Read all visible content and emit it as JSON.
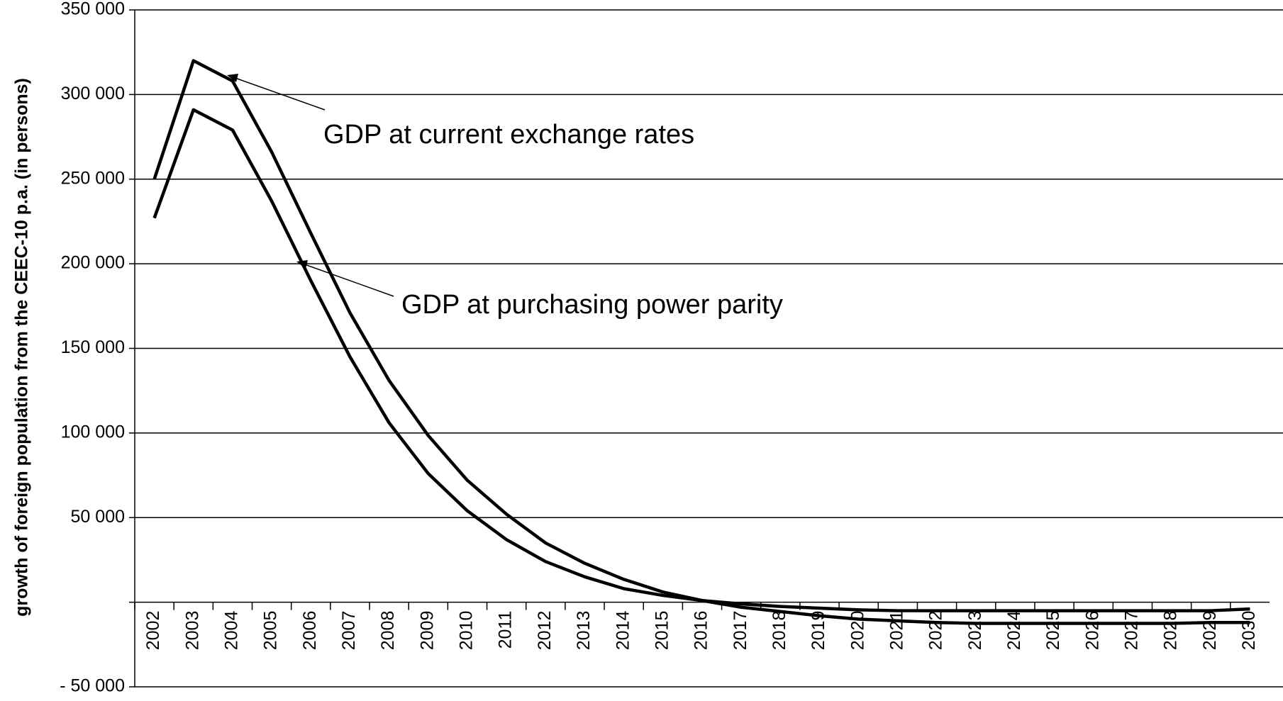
{
  "chart_data": {
    "type": "line",
    "y_label": "growth of foreign population from the CEEC-10 p.a. (in persons)",
    "annotations": [
      "GDP at current exchange rates",
      "GDP at purchasing power parity"
    ],
    "categories": [
      "2002",
      "2003",
      "2004",
      "2005",
      "2006",
      "2007",
      "2008",
      "2009",
      "2010",
      "2011",
      "2012",
      "2013",
      "2014",
      "2015",
      "2016",
      "2017",
      "2018",
      "2019",
      "2020",
      "2021",
      "2022",
      "2023",
      "2024",
      "2025",
      "2026",
      "2027",
      "2028",
      "2029",
      "2030"
    ],
    "series": [
      {
        "color": "#000000",
        "values": [
          250000,
          320000,
          308000,
          266000,
          218000,
          171000,
          131000,
          98500,
          72000,
          52000,
          35000,
          23000,
          13500,
          6000,
          1000,
          -1000,
          -2500,
          -3500,
          -4500,
          -5000,
          -5000,
          -5000,
          -5000,
          -5000,
          -5000,
          -5000,
          -5000,
          -5000,
          -4000
        ]
      },
      {
        "color": "#000000",
        "values": [
          227000,
          291000,
          279000,
          237000,
          190000,
          145000,
          106000,
          76000,
          54000,
          37000,
          24000,
          15000,
          8000,
          4000,
          1000,
          -3000,
          -5500,
          -8000,
          -10000,
          -11000,
          -12000,
          -12500,
          -12500,
          -12500,
          -12500,
          -12500,
          -12500,
          -12000,
          -12000
        ]
      }
    ],
    "ylim": [
      -50000,
      350000
    ],
    "yticks": [
      {
        "value": -50000,
        "label": "- 50 000"
      },
      {
        "value": 50000,
        "label": "50 000"
      },
      {
        "value": 100000,
        "label": "100 000"
      },
      {
        "value": 150000,
        "label": "150 000"
      },
      {
        "value": 200000,
        "label": "200 000"
      },
      {
        "value": 250000,
        "label": "250 000"
      },
      {
        "value": 300000,
        "label": "300 000"
      },
      {
        "value": 350000,
        "label": "350 000"
      }
    ],
    "grid": true
  }
}
